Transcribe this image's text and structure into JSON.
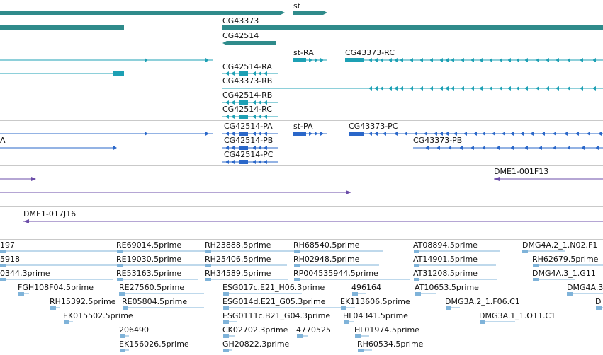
{
  "colors": {
    "gene": "#2f8b8b",
    "mrna_cg": "#1da0b4",
    "mrna_fb": "#2a67c9",
    "clone": "#6b4ca8",
    "est": "#7fb3d9",
    "divider": "#c9c9c9"
  },
  "genes": [
    {
      "label": "st"
    },
    {
      "label": "CG43373"
    },
    {
      "label": "CG42514"
    }
  ],
  "cg_transcripts": [
    {
      "label": "st-RA"
    },
    {
      "label": "CG43373-RC"
    },
    {
      "label": "CG42514-RA"
    },
    {
      "label": "CG43373-RB"
    },
    {
      "label": "CG42514-RB"
    },
    {
      "label": "CG42514-RC"
    }
  ],
  "fb_transcripts": [
    {
      "label": "CG42514-PA"
    },
    {
      "label": "st-PA"
    },
    {
      "label": "CG43373-PC"
    },
    {
      "label": "A"
    },
    {
      "label": "CG42514-PB"
    },
    {
      "label": "CG43373-PB"
    },
    {
      "label": "CG42514-PC"
    }
  ],
  "clones": [
    {
      "label": "DME1-001F13"
    },
    {
      "label": "DME1-017J16"
    }
  ],
  "ests": [
    {
      "label": "197"
    },
    {
      "label": "RE69014.5prime"
    },
    {
      "label": "RH23888.5prime"
    },
    {
      "label": "RH68540.5prime"
    },
    {
      "label": "AT08894.5prime"
    },
    {
      "label": "DMG4A.2_1.N02.F1"
    },
    {
      "label": "5918"
    },
    {
      "label": "RE19030.5prime"
    },
    {
      "label": "RH25406.5prime"
    },
    {
      "label": "RH02948.5prime"
    },
    {
      "label": "AT14901.5prime"
    },
    {
      "label": "RH62679.5prime"
    },
    {
      "label": "0344.3prime"
    },
    {
      "label": "RE53163.5prime"
    },
    {
      "label": "RH34589.5prime"
    },
    {
      "label": "RP004535944.5prime"
    },
    {
      "label": "AT31208.5prime"
    },
    {
      "label": "DMG4A.3_1.G11"
    },
    {
      "label": "FGH108F04.5prime"
    },
    {
      "label": "RE27560.5prime"
    },
    {
      "label": "ESG017c.E21_H06.3prime"
    },
    {
      "label": "496164"
    },
    {
      "label": "AT10653.5prime"
    },
    {
      "label": "DMG4A.3"
    },
    {
      "label": "RH15392.5prime"
    },
    {
      "label": "RE05804.5prime"
    },
    {
      "label": "ESG014d.E21_G05.3prime"
    },
    {
      "label": "EK113606.5prime"
    },
    {
      "label": "DMG3A.2_1.F06.C1"
    },
    {
      "label": "D"
    },
    {
      "label": "EK015502.5prime"
    },
    {
      "label": "ESG0111c.B21_G04.3prime"
    },
    {
      "label": "HL04341.5prime"
    },
    {
      "label": "DMG3A.1_1.O11.C1"
    },
    {
      "label": "206490"
    },
    {
      "label": "CK02702.3prime"
    },
    {
      "label": "4770525"
    },
    {
      "label": "HL01974.5prime"
    },
    {
      "label": "EK156026.5prime"
    },
    {
      "label": "GH20822.3prime"
    },
    {
      "label": "RH60534.5prime"
    }
  ]
}
